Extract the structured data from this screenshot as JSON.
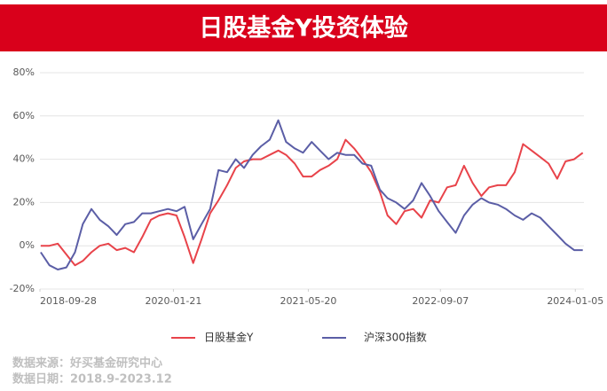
{
  "chart_data": {
    "type": "line",
    "title": "日股基金Y投资体验",
    "x": [
      "2018-10-01",
      "2018-11-01",
      "2018-12-01",
      "2019-01-01",
      "2019-02-01",
      "2019-03-01",
      "2019-04-01",
      "2019-05-01",
      "2019-06-01",
      "2019-07-01",
      "2019-08-01",
      "2019-09-01",
      "2019-10-01",
      "2019-11-01",
      "2019-12-01",
      "2020-01-01",
      "2020-02-01",
      "2020-03-01",
      "2020-04-01",
      "2020-05-01",
      "2020-06-01",
      "2020-07-01",
      "2020-08-01",
      "2020-09-01",
      "2020-10-01",
      "2020-11-01",
      "2020-12-01",
      "2021-01-01",
      "2021-02-01",
      "2021-03-01",
      "2021-04-01",
      "2021-05-01",
      "2021-06-01",
      "2021-07-01",
      "2021-08-01",
      "2021-09-01",
      "2021-10-01",
      "2021-11-01",
      "2021-12-01",
      "2022-01-01",
      "2022-02-01",
      "2022-03-01",
      "2022-04-01",
      "2022-05-01",
      "2022-06-01",
      "2022-07-01",
      "2022-08-01",
      "2022-09-01",
      "2022-10-01",
      "2022-11-01",
      "2022-12-01",
      "2023-01-01",
      "2023-02-01",
      "2023-03-01",
      "2023-04-01",
      "2023-05-01",
      "2023-06-01",
      "2023-07-01",
      "2023-08-01",
      "2023-09-01",
      "2023-10-01",
      "2023-11-01",
      "2023-12-01",
      "2024-01-01",
      "2024-02-01"
    ],
    "series": [
      {
        "name": "日股基金Y",
        "color": "#e8434a",
        "values": [
          0,
          0,
          1,
          -4,
          -9,
          -7,
          -3,
          0,
          1,
          -2,
          -1,
          -3,
          4,
          12,
          14,
          15,
          14,
          4,
          -8,
          3,
          15,
          21,
          28,
          36,
          39,
          40,
          40,
          42,
          44,
          42,
          38,
          32,
          32,
          35,
          37,
          40,
          49,
          45,
          40,
          34,
          25,
          14,
          10,
          16,
          17,
          13,
          21,
          20,
          27,
          28,
          37,
          29,
          23,
          27,
          28,
          28,
          34,
          47,
          44,
          41,
          38,
          31,
          39,
          40,
          43
        ]
      },
      {
        "name": "沪深300指数",
        "color": "#5b5ea6",
        "values": [
          -3,
          -9,
          -11,
          -10,
          -3,
          10,
          17,
          12,
          9,
          5,
          10,
          11,
          15,
          15,
          16,
          17,
          16,
          18,
          3,
          10,
          17,
          35,
          34,
          40,
          36,
          42,
          46,
          49,
          58,
          48,
          45,
          43,
          48,
          44,
          40,
          43,
          42,
          42,
          38,
          37,
          26,
          22,
          20,
          17,
          21,
          29,
          23,
          16,
          11,
          6,
          14,
          19,
          22,
          20,
          19,
          17,
          14,
          12,
          15,
          13,
          9,
          5,
          1,
          -2,
          -2
        ]
      }
    ],
    "xlim": [
      "2018-09-28",
      "2024-02-05"
    ],
    "xticks": [
      "2018-09-28",
      "2020-01-21",
      "2021-05-20",
      "2022-09-07",
      "2024-01-05"
    ],
    "ylim": [
      -20,
      80
    ],
    "yticks": [
      {
        "value": -20,
        "label": "-20%"
      },
      {
        "value": 0,
        "label": "0%"
      },
      {
        "value": 20,
        "label": "20%"
      },
      {
        "value": 40,
        "label": "40%"
      },
      {
        "value": 60,
        "label": "60%"
      },
      {
        "value": 80,
        "label": "80%"
      }
    ],
    "grid": true,
    "legend": "bottom",
    "source": "数据来源：好买基金研究中心",
    "date_range": "数据日期：2018.9-2023.12"
  }
}
